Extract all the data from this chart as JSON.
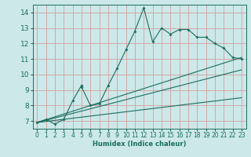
{
  "xlabel": "Humidex (Indice chaleur)",
  "ylabel": "",
  "xlim": [
    -0.5,
    23.5
  ],
  "ylim": [
    6.5,
    14.5
  ],
  "yticks": [
    7,
    8,
    9,
    10,
    11,
    12,
    13,
    14
  ],
  "xticks": [
    0,
    1,
    2,
    3,
    4,
    5,
    6,
    7,
    8,
    9,
    10,
    11,
    12,
    13,
    14,
    15,
    16,
    17,
    18,
    19,
    20,
    21,
    22,
    23
  ],
  "bg_color": "#cce8e8",
  "grid_color": "#d4a0a0",
  "line_color": "#1a6e60",
  "main_x": [
    0,
    1,
    2,
    3,
    4,
    5,
    5,
    6,
    7,
    8,
    9,
    10,
    11,
    12,
    13,
    14,
    15,
    16,
    17,
    18,
    19,
    20,
    21,
    22,
    23
  ],
  "main_y": [
    6.9,
    7.1,
    6.8,
    7.1,
    8.3,
    9.3,
    9.2,
    8.0,
    8.1,
    9.3,
    10.4,
    11.6,
    12.8,
    14.3,
    12.1,
    13.0,
    12.6,
    12.9,
    12.9,
    12.4,
    12.4,
    12.0,
    11.7,
    11.1,
    11.0
  ],
  "line1_x": [
    0,
    23
  ],
  "line1_y": [
    6.9,
    11.1
  ],
  "line2_x": [
    0,
    23
  ],
  "line2_y": [
    6.9,
    10.3
  ],
  "line3_x": [
    0,
    23
  ],
  "line3_y": [
    6.9,
    8.5
  ]
}
